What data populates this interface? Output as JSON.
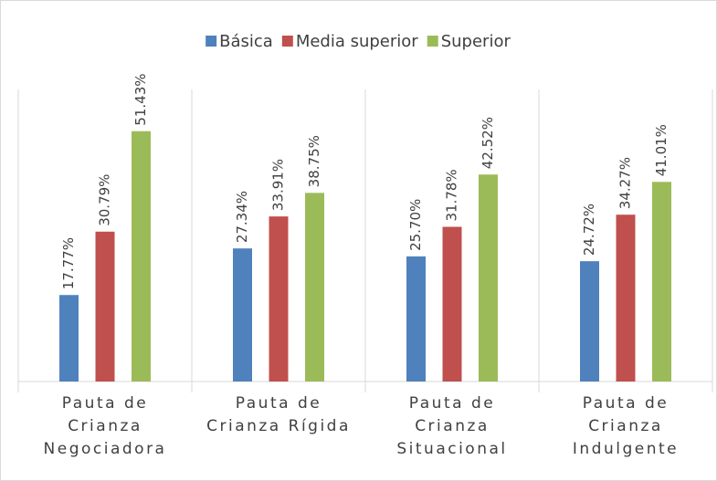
{
  "chart_data": {
    "type": "bar",
    "categories": [
      "Pauta de Crianza Negociadora",
      "Pauta de Crianza Rígida",
      "Pauta de Crianza Situacional",
      "Pauta de Crianza Indulgente"
    ],
    "series": [
      {
        "name": "Básica",
        "color": "#4f81bd",
        "values": [
          17.77,
          27.34,
          25.7,
          24.72
        ],
        "value_labels": [
          "17.77%",
          "27.34%",
          "25.70%",
          "24.72%"
        ]
      },
      {
        "name": "Media superior",
        "color": "#c0504d",
        "values": [
          30.79,
          33.91,
          31.78,
          34.27
        ],
        "value_labels": [
          "30.79%",
          "33.91%",
          "31.78%",
          "34.27%"
        ]
      },
      {
        "name": "Superior",
        "color": "#9bbb59",
        "values": [
          51.43,
          38.75,
          42.52,
          41.01
        ],
        "value_labels": [
          "51.43%",
          "38.75%",
          "42.52%",
          "41.01%"
        ]
      }
    ],
    "ylim": [
      0,
      60
    ],
    "legend": "top"
  }
}
